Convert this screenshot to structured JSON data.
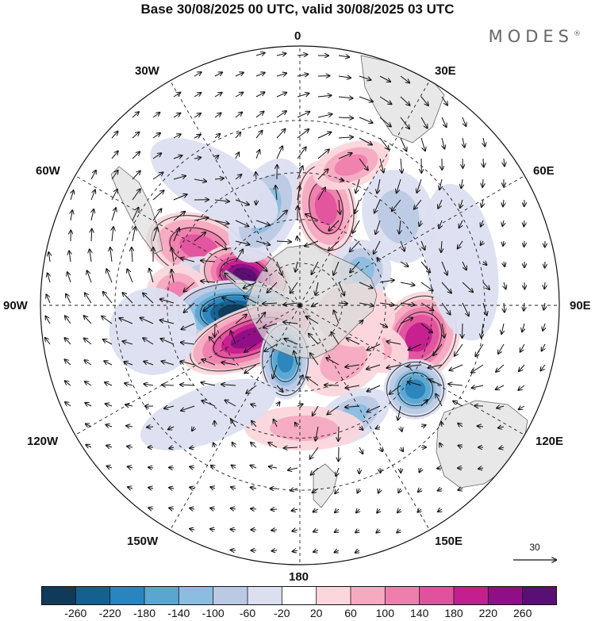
{
  "title": "Base 30/08/2025 00 UTC, valid 30/08/2025 03 UTC",
  "brand": "MODES",
  "brand_mark": "®",
  "longitude_labels": {
    "lon_0": "0",
    "lon_30e": "30E",
    "lon_60e": "60E",
    "lon_90e": "90E",
    "lon_120e": "120E",
    "lon_150e": "150E",
    "lon_180": "180",
    "lon_150w": "150W",
    "lon_120w": "120W",
    "lon_90w": "90W",
    "lon_60w": "60W",
    "lon_30w": "30W"
  },
  "vector_reference": {
    "label": "30",
    "value": 30
  },
  "colorbar": {
    "ticks": [
      "-260",
      "-220",
      "-180",
      "-140",
      "-100",
      "-60",
      "-20",
      "20",
      "60",
      "100",
      "140",
      "180",
      "220",
      "260"
    ],
    "colors": [
      "#0f3a5a",
      "#15608f",
      "#2a84bd",
      "#5aa6d1",
      "#8cbde0",
      "#bcc9e4",
      "#dcdff0",
      "#ffffff",
      "#fbd6dc",
      "#f5aac0",
      "#ee7fad",
      "#e0529e",
      "#c41f8e",
      "#8e0f86",
      "#5a0f74"
    ]
  },
  "anomalies": [
    {
      "lon": -60,
      "lat": -50,
      "rx": 68,
      "ry": 42,
      "rot": 15,
      "value": 140
    },
    {
      "lon": -75,
      "lat": -60,
      "rx": 55,
      "ry": 30,
      "rot": 20,
      "value": -120
    },
    {
      "lon": -85,
      "lat": -48,
      "rx": 40,
      "ry": 38,
      "rot": 0,
      "value": 120
    },
    {
      "lon": -62,
      "lat": -68,
      "rx": 58,
      "ry": 38,
      "rot": 15,
      "value": 260
    },
    {
      "lon": -97,
      "lat": -67,
      "rx": 80,
      "ry": 42,
      "rot": 0,
      "value": -260
    },
    {
      "lon": -123,
      "lat": -69,
      "rx": 88,
      "ry": 38,
      "rot": -20,
      "value": 220
    },
    {
      "lon": -20,
      "lat": -55,
      "rx": 40,
      "ry": 70,
      "rot": 25,
      "value": -120
    },
    {
      "lon": 15,
      "lat": -55,
      "rx": 38,
      "ry": 60,
      "rot": -10,
      "value": 150
    },
    {
      "lon": 20,
      "lat": -40,
      "rx": 50,
      "ry": 28,
      "rot": -20,
      "value": 100
    },
    {
      "lon": 48,
      "lat": -45,
      "rx": 45,
      "ry": 60,
      "rot": -15,
      "value": -60
    },
    {
      "lon": 60,
      "lat": -65,
      "rx": 38,
      "ry": 38,
      "rot": 0,
      "value": -120
    },
    {
      "lon": 105,
      "lat": -48,
      "rx": 50,
      "ry": 60,
      "rot": 30,
      "value": 200
    },
    {
      "lon": 120,
      "lat": -62,
      "rx": 52,
      "ry": 32,
      "rot": 20,
      "value": 70
    },
    {
      "lon": 142,
      "lat": -65,
      "rx": 55,
      "ry": 40,
      "rot": -30,
      "value": 70
    },
    {
      "lon": 126,
      "lat": -42,
      "rx": 40,
      "ry": 38,
      "rot": 0,
      "value": -180
    },
    {
      "lon": -165,
      "lat": -70,
      "rx": 32,
      "ry": 50,
      "rot": 0,
      "value": -200
    },
    {
      "lon": 155,
      "lat": -48,
      "rx": 52,
      "ry": 30,
      "rot": -30,
      "value": -100
    },
    {
      "lon": 178,
      "lat": -48,
      "rx": 75,
      "ry": 28,
      "rot": 0,
      "value": 70
    },
    {
      "lon": -140,
      "lat": -42,
      "rx": 90,
      "ry": 35,
      "rot": -20,
      "value": -50
    },
    {
      "lon": -100,
      "lat": -40,
      "rx": 55,
      "ry": 55,
      "rot": 0,
      "value": -40
    },
    {
      "lon": -35,
      "lat": -40,
      "rx": 90,
      "ry": 40,
      "rot": 30,
      "value": -40
    },
    {
      "lon": 75,
      "lat": -35,
      "rx": 45,
      "ry": 100,
      "rot": -10,
      "value": -50
    },
    {
      "lon": 100,
      "lat": -70,
      "rx": 50,
      "ry": 40,
      "rot": 0,
      "value": 50
    }
  ]
}
